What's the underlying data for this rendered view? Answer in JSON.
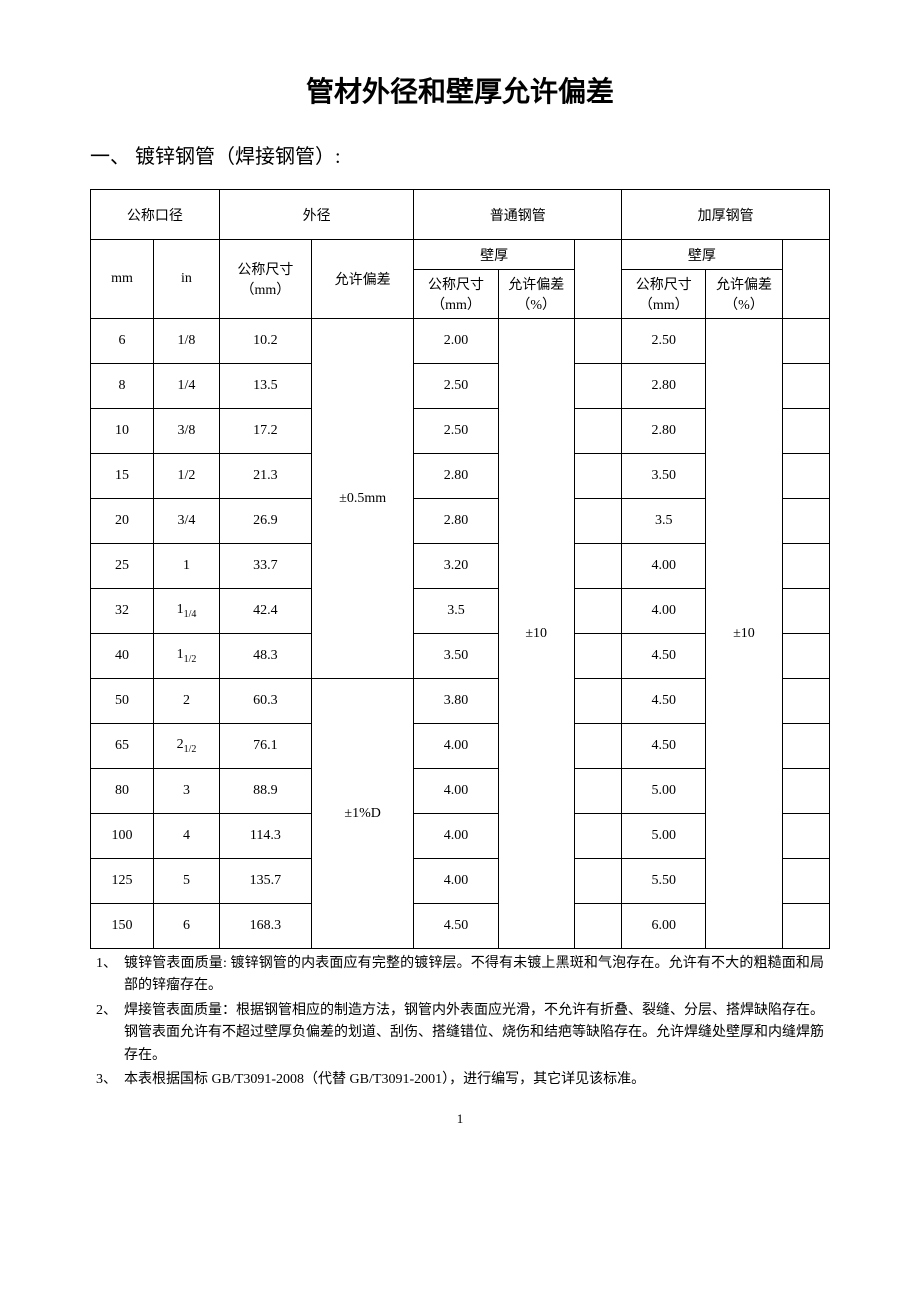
{
  "title": "管材外径和壁厚允许偏差",
  "section_heading": "一、 镀锌钢管（焊接钢管）:",
  "table": {
    "headers": {
      "nominal_dia": "公称口径",
      "outer_dia": "外径",
      "normal_pipe": "普通钢管",
      "thick_pipe": "加厚钢管",
      "mm": "mm",
      "in": "in",
      "nominal_size_mm": "公称尺寸（mm）",
      "tolerance": "允许偏差",
      "wall_thickness": "壁厚",
      "tolerance_pct": "允许偏差（%）"
    },
    "col_widths": {
      "mm": 48,
      "in": 50,
      "od": 70,
      "odtol": 78,
      "wt": 64,
      "wttol": 58,
      "empty": 36
    },
    "rows": [
      {
        "mm": "6",
        "in": "1/8",
        "od": "10.2",
        "wt1": "2.00",
        "wt2": "2.50"
      },
      {
        "mm": "8",
        "in": "1/4",
        "od": "13.5",
        "wt1": "2.50",
        "wt2": "2.80"
      },
      {
        "mm": "10",
        "in": "3/8",
        "od": "17.2",
        "wt1": "2.50",
        "wt2": "2.80"
      },
      {
        "mm": "15",
        "in": "1/2",
        "od": "21.3",
        "wt1": "2.80",
        "wt2": "3.50"
      },
      {
        "mm": "20",
        "in": "3/4",
        "od": "26.9",
        "wt1": "2.80",
        "wt2": "3.5"
      },
      {
        "mm": "25",
        "in": "1",
        "od": "33.7",
        "wt1": "3.20",
        "wt2": "4.00"
      },
      {
        "mm": "32",
        "in_base": "1",
        "in_sub": "1/4",
        "od": "42.4",
        "wt1": "3.5",
        "wt2": "4.00"
      },
      {
        "mm": "40",
        "in_base": "1",
        "in_sub": "1/2",
        "od": "48.3",
        "wt1": "3.50",
        "wt2": "4.50"
      },
      {
        "mm": "50",
        "in": "2",
        "od": "60.3",
        "wt1": "3.80",
        "wt2": "4.50"
      },
      {
        "mm": "65",
        "in_base": "2",
        "in_sub": "1/2",
        "od": "76.1",
        "wt1": "4.00",
        "wt2": "4.50"
      },
      {
        "mm": "80",
        "in": "3",
        "od": "88.9",
        "wt1": "4.00",
        "wt2": "5.00"
      },
      {
        "mm": "100",
        "in": "4",
        "od": "114.3",
        "wt1": "4.00",
        "wt2": "5.00"
      },
      {
        "mm": "125",
        "in": "5",
        "od": "135.7",
        "wt1": "4.00",
        "wt2": "5.50"
      },
      {
        "mm": "150",
        "in": "6",
        "od": "168.3",
        "wt1": "4.50",
        "wt2": "6.00"
      }
    ],
    "od_tolerance_1": "±0.5mm",
    "od_tolerance_2": "±1%D",
    "wt_tolerance": "±10",
    "od_tol_1_rowspan": 8,
    "od_tol_2_rowspan": 6,
    "wt_tol_rowspan": 14
  },
  "notes": [
    {
      "num": "1、",
      "text": "镀锌管表面质量: 镀锌钢管的内表面应有完整的镀锌层。不得有未镀上黑斑和气泡存在。允许有不大的粗糙面和局部的锌瘤存在。"
    },
    {
      "num": "2、",
      "text": "焊接管表面质量：根据钢管相应的制造方法，钢管内外表面应光滑，不允许有折叠、裂缝、分层、搭焊缺陷存在。钢管表面允许有不超过壁厚负偏差的划道、刮伤、搭缝错位、烧伤和结疤等缺陷存在。允许焊缝处壁厚和内缝焊筋存在。"
    },
    {
      "num": "3、",
      "text": "本表根据国标 GB/T3091-2008（代替 GB/T3091-2001），进行编写，其它详见该标准。"
    }
  ],
  "page_number": "1",
  "style": {
    "background": "#ffffff",
    "text_color": "#000000",
    "border_color": "#000000",
    "title_fontsize": 28,
    "section_fontsize": 20,
    "table_fontsize": 14,
    "notes_fontsize": 14,
    "font_family": "SimSun"
  }
}
